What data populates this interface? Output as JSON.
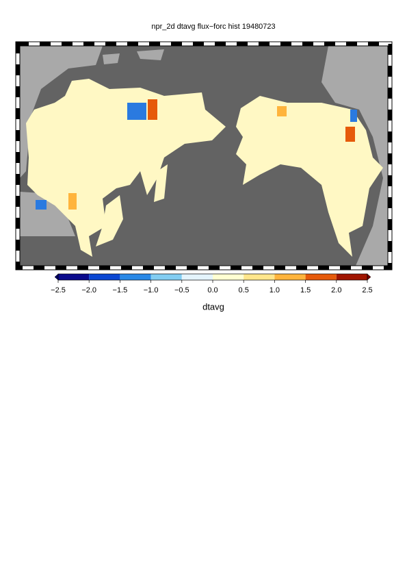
{
  "chart_data": {
    "type": "map",
    "title": "npr_2d dtavg flux−forc hist 19480723",
    "colorbar": {
      "label": "dtavg",
      "ticks": [
        {
          "value": -2.5,
          "label": "−2.5"
        },
        {
          "value": -2.0,
          "label": "−2.0"
        },
        {
          "value": -1.5,
          "label": "−1.5"
        },
        {
          "value": -1.0,
          "label": "−1.0"
        },
        {
          "value": -0.5,
          "label": "−0.5"
        },
        {
          "value": 0,
          "label": "0.0"
        },
        0.5,
        {
          "value": 1.0,
          "label": "1.0"
        },
        1.5,
        {
          "value": 2.0,
          "label": "2.0"
        },
        2.5
      ],
      "lim": [
        -2.5,
        2.5
      ],
      "colors": [
        "#0a0a8c",
        "#0a46d2",
        "#2888e6",
        "#82cdf2",
        "#e4f4fc",
        "#ffffd2",
        "#ffe68c",
        "#ffb43c",
        "#e65a0a",
        "#a01400"
      ],
      "under_color": "#000064",
      "over_color": "#780000"
    }
  }
}
